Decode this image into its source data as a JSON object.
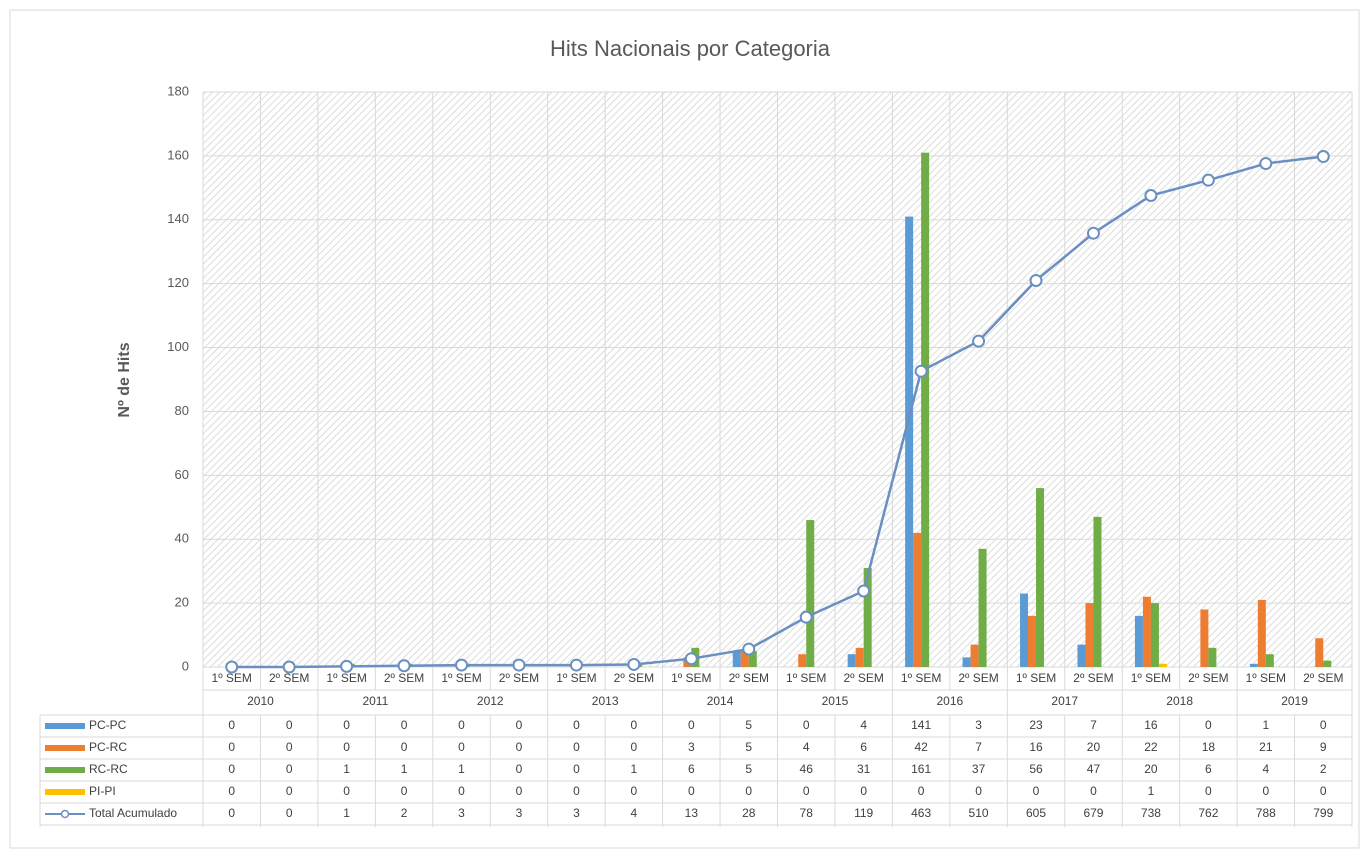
{
  "chart_data": {
    "type": "bar",
    "title": "Hits Nacionais por Categoria",
    "y_label": "Nº de Hits",
    "categories": [
      "1º SEM",
      "2º SEM",
      "1º SEM",
      "2º SEM",
      "1º SEM",
      "2º SEM",
      "1º SEM",
      "2º SEM",
      "1º SEM",
      "2º SEM",
      "1º SEM",
      "2º SEM",
      "1º SEM",
      "2º SEM",
      "1º SEM",
      "2º SEM",
      "1º SEM",
      "2º SEM",
      "1º SEM",
      "2º SEM"
    ],
    "category_groups": [
      "2010",
      "2011",
      "2012",
      "2013",
      "2014",
      "2015",
      "2016",
      "2017",
      "2018",
      "2019"
    ],
    "series": [
      {
        "name": "PC-PC",
        "color": "#5b9bd5",
        "values": [
          0,
          0,
          0,
          0,
          0,
          0,
          0,
          0,
          0,
          5,
          0,
          4,
          141,
          3,
          23,
          7,
          16,
          0,
          1,
          0
        ]
      },
      {
        "name": "PC-RC",
        "color": "#ed7d31",
        "values": [
          0,
          0,
          0,
          0,
          0,
          0,
          0,
          0,
          3,
          5,
          4,
          6,
          42,
          7,
          16,
          20,
          22,
          18,
          21,
          9
        ]
      },
      {
        "name": "RC-RC",
        "color": "#70ad47",
        "values": [
          0,
          0,
          1,
          1,
          1,
          0,
          0,
          1,
          6,
          5,
          46,
          31,
          161,
          37,
          56,
          47,
          20,
          6,
          4,
          2
        ]
      },
      {
        "name": "PI-PI",
        "color": "#ffc000",
        "values": [
          0,
          0,
          0,
          0,
          0,
          0,
          0,
          0,
          0,
          0,
          0,
          0,
          0,
          0,
          0,
          0,
          1,
          0,
          0,
          0
        ]
      },
      {
        "name": "Total Acumulado",
        "color": "#6a8fc0",
        "type": "line",
        "axis": "y2",
        "values": [
          0,
          0,
          1,
          2,
          3,
          3,
          3,
          4,
          13,
          28,
          78,
          119,
          463,
          510,
          605,
          679,
          738,
          762,
          788,
          799
        ]
      }
    ],
    "ylim": [
      0,
      180
    ],
    "yticks": [
      0,
      20,
      40,
      60,
      80,
      100,
      120,
      140,
      160,
      180
    ],
    "y2lim": [
      0,
      900
    ],
    "grid": true,
    "data_table": true
  }
}
